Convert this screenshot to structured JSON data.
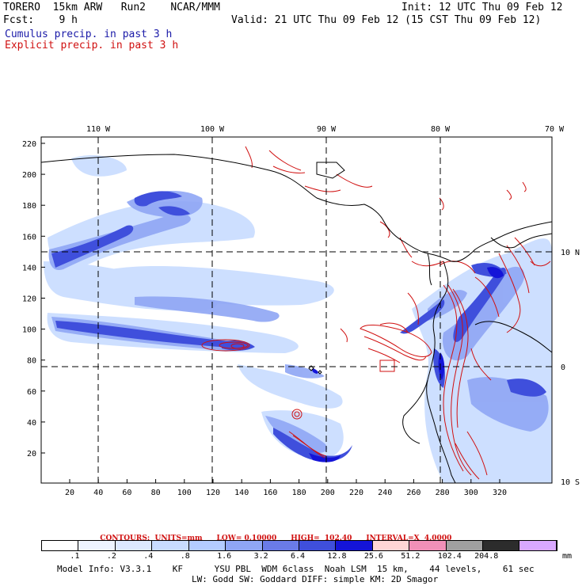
{
  "header": {
    "model": "TORERO  15km ARW   Run2    NCAR/MMM",
    "init": "Init: 12 UTC Thu 09 Feb 12",
    "fcst": "Fcst:    9 h",
    "valid": "Valid: 21 UTC Thu 09 Feb 12 (15 CST Thu 09 Feb 12)",
    "legend_cumulus": "Cumulus precip. in past 3 h",
    "legend_explicit": "Explicit precip. in past 3 h"
  },
  "map": {
    "top_lon_labels": [
      "110 W",
      "100 W",
      "90 W",
      "80 W",
      "70 W"
    ],
    "right_lat_labels": [
      "10 N",
      "0",
      "10 S"
    ],
    "left_y_ticks": [
      "220",
      "200",
      "180",
      "160",
      "140",
      "120",
      "100",
      "80",
      "60",
      "40",
      "20"
    ],
    "bottom_x_ticks": [
      "20",
      "40",
      "60",
      "80",
      "100",
      "120",
      "140",
      "160",
      "180",
      "200",
      "220",
      "240",
      "260",
      "280",
      "300",
      "320"
    ]
  },
  "contours": {
    "units": "CONTOURS:  UNITS=mm",
    "low": "LOW= 0.10000",
    "high": "HIGH=  102.40",
    "interval": "INTERVAL=X  4.0000"
  },
  "colorbar": {
    "colors": [
      "#ffffff",
      "#eef4ff",
      "#dde9ff",
      "#c8dcff",
      "#b4ccff",
      "#8fa6f5",
      "#6a7be8",
      "#3f4fdc",
      "#1414d8",
      "#ffd6d6",
      "#f090b8",
      "#a0a0a0",
      "#2c2c2c",
      "#d9a8ff"
    ],
    "labels": [
      ".1",
      ".2",
      ".4",
      ".8",
      "1.6",
      "3.2",
      "6.4",
      "12.8",
      "25.6",
      "51.2",
      "102.4",
      "204.8"
    ],
    "unit": "mm"
  },
  "footer": {
    "line1": "Model Info: V3.3.1    KF      YSU PBL  WDM 6class  Noah LSM  15 km,    44 levels,    61 sec",
    "line2": "LW: Godd SW: Goddard DIFF: simple KM: 2D Smagor"
  }
}
